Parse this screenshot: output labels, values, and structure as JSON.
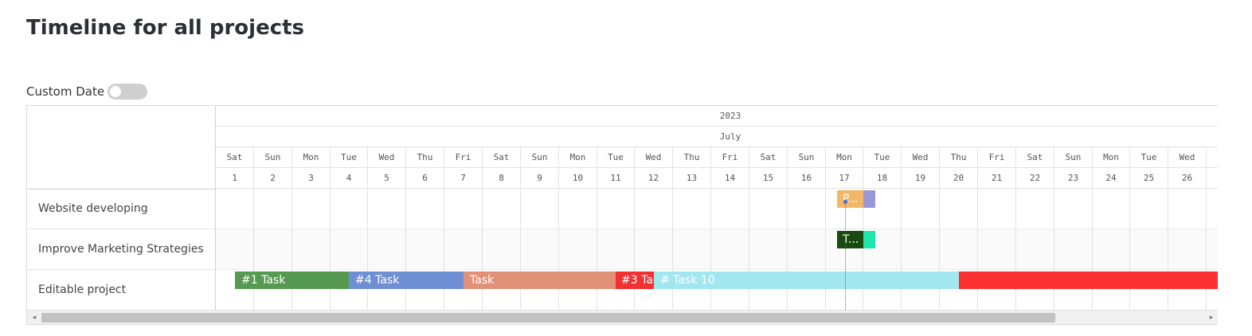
{
  "page": {
    "title": "Timeline for all projects"
  },
  "custom_date": {
    "label": "Custom Date",
    "enabled": false
  },
  "gantt": {
    "year": "2023",
    "month": "July",
    "days": [
      {
        "dow": "Sat",
        "num": "1"
      },
      {
        "dow": "Sun",
        "num": "2"
      },
      {
        "dow": "Mon",
        "num": "3"
      },
      {
        "dow": "Tue",
        "num": "4"
      },
      {
        "dow": "Wed",
        "num": "5"
      },
      {
        "dow": "Thu",
        "num": "6"
      },
      {
        "dow": "Fri",
        "num": "7"
      },
      {
        "dow": "Sat",
        "num": "8"
      },
      {
        "dow": "Sun",
        "num": "9"
      },
      {
        "dow": "Mon",
        "num": "10"
      },
      {
        "dow": "Tue",
        "num": "11"
      },
      {
        "dow": "Wed",
        "num": "12"
      },
      {
        "dow": "Thu",
        "num": "13"
      },
      {
        "dow": "Fri",
        "num": "14"
      },
      {
        "dow": "Sat",
        "num": "15"
      },
      {
        "dow": "Sun",
        "num": "16"
      },
      {
        "dow": "Mon",
        "num": "17"
      },
      {
        "dow": "Tue",
        "num": "18"
      },
      {
        "dow": "Wed",
        "num": "19"
      },
      {
        "dow": "Thu",
        "num": "20"
      },
      {
        "dow": "Fri",
        "num": "21"
      },
      {
        "dow": "Sat",
        "num": "22"
      },
      {
        "dow": "Sun",
        "num": "23"
      },
      {
        "dow": "Mon",
        "num": "24"
      },
      {
        "dow": "Tue",
        "num": "25"
      },
      {
        "dow": "Wed",
        "num": "26"
      },
      {
        "dow": "T",
        "num": ""
      }
    ],
    "today": "17",
    "projects": [
      {
        "name": "Website developing",
        "tasks": [
          {
            "label": "P...",
            "start": 17.3,
            "end": 18.0,
            "color": "#f3b768"
          },
          {
            "label": "",
            "start": 18.0,
            "end": 18.3,
            "color": "#9b95da"
          }
        ]
      },
      {
        "name": "Improve Marketing Strategies",
        "tasks": [
          {
            "label": "T...",
            "start": 17.3,
            "end": 18.0,
            "color": "#1a4a10"
          },
          {
            "label": "",
            "start": 18.0,
            "end": 18.3,
            "color": "#1fe6ac"
          }
        ]
      },
      {
        "name": "Editable project",
        "tasks": [
          {
            "label": "#1 Task",
            "start": 1.5,
            "end": 4.5,
            "color": "#569a51"
          },
          {
            "label": "#4 Task",
            "start": 4.5,
            "end": 7.5,
            "color": "#6f8fd4"
          },
          {
            "label": "Task",
            "start": 7.5,
            "end": 11.5,
            "color": "#e19178"
          },
          {
            "label": "#3 Ta",
            "start": 11.5,
            "end": 12.5,
            "color": "#f23131"
          },
          {
            "label": "# Task 10",
            "start": 12.5,
            "end": 20.5,
            "color": "#a2e6ef"
          },
          {
            "label": "",
            "start": 20.5,
            "end": 28.0,
            "color": "#fc3030"
          }
        ]
      }
    ]
  },
  "scrollbar": {
    "left_arrow": "◂",
    "right_arrow": "▸"
  }
}
